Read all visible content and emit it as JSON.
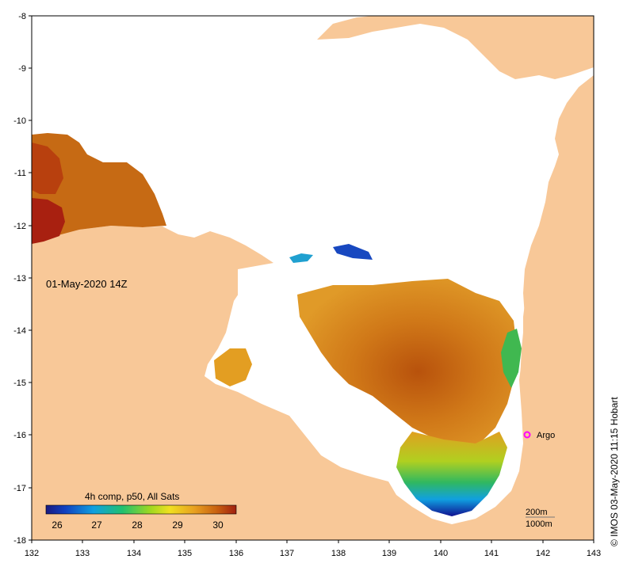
{
  "map": {
    "timestamp": "01-May-2020 14Z",
    "x_ticks": [
      "132",
      "133",
      "134",
      "135",
      "136",
      "137",
      "138",
      "139",
      "140",
      "141",
      "142",
      "143"
    ],
    "y_ticks": [
      "-8",
      "-9",
      "-10",
      "-11",
      "-12",
      "-13",
      "-14",
      "-15",
      "-16",
      "-17",
      "-18"
    ],
    "argo_label": "Argo",
    "legend": {
      "title": "4h comp, p50, All Sats",
      "ticks": [
        "26",
        "27",
        "28",
        "29",
        "30"
      ]
    },
    "contour_labels": [
      "200m",
      "1000m"
    ],
    "credit": "© IMOS 03-May-2020 11:15 Hobart",
    "colors": {
      "land": "#f8c898",
      "sst_warm": "#c4650f",
      "sst_hot": "#b01e10",
      "sst_mid": "#e5a020",
      "sst_cool": "#30b050",
      "sst_cold": "#1020a0",
      "argo_marker": "#ff00ff"
    }
  }
}
